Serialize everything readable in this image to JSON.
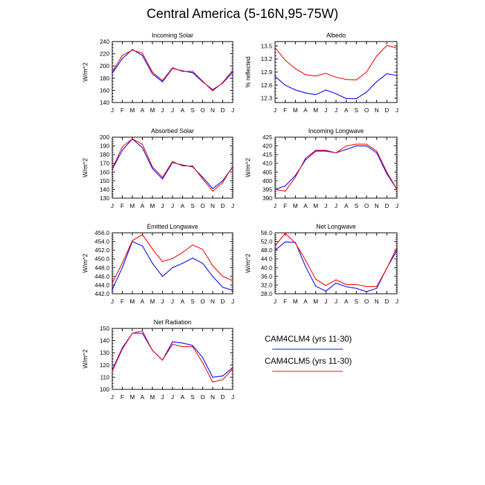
{
  "title": "Central America (5-16N,95-75W)",
  "colors": {
    "clm4": "#0000ff",
    "clm5": "#ff0000"
  },
  "legend": [
    {
      "label": "CAM4CLM4 (yrs 11-30)",
      "color": "#0000ff"
    },
    {
      "label": "CAM4CLM5 (yrs 11-30)",
      "color": "#ff0000"
    }
  ],
  "chart_data": [
    {
      "type": "line",
      "title": "Incoming Solar",
      "ylabel": "W/m^2",
      "xlabel": "",
      "categories": [
        "J",
        "F",
        "M",
        "A",
        "M",
        "J",
        "J",
        "A",
        "S",
        "O",
        "N",
        "D",
        "J"
      ],
      "ylim": [
        140,
        240
      ],
      "yticks": [
        "140",
        "160",
        "180",
        "200",
        "220",
        "240"
      ],
      "series": [
        {
          "name": "CAM4CLM4 (yrs 11-30)",
          "values": [
            188,
            212,
            227,
            217,
            187,
            174,
            196,
            192,
            189,
            174,
            161,
            172,
            190
          ]
        },
        {
          "name": "CAM4CLM5 (yrs 11-30)",
          "values": [
            190,
            217,
            226,
            221,
            190,
            176,
            197,
            191,
            191,
            175,
            159,
            173,
            193
          ]
        }
      ]
    },
    {
      "type": "line",
      "title": "Albedo",
      "ylabel": "% reflected",
      "xlabel": "",
      "categories": [
        "J",
        "F",
        "M",
        "A",
        "M",
        "J",
        "J",
        "A",
        "S",
        "O",
        "N",
        "D",
        "J"
      ],
      "ylim": [
        12.2,
        13.6
      ],
      "yticks": [
        "12.3",
        "12.6",
        "12.9",
        "13.2",
        "13.5"
      ],
      "series": [
        {
          "name": "CAM4CLM4 (yrs 11-30)",
          "values": [
            12.8,
            12.6,
            12.49,
            12.42,
            12.38,
            12.49,
            12.4,
            12.29,
            12.29,
            12.44,
            12.68,
            12.86,
            12.82
          ]
        },
        {
          "name": "CAM4CLM5 (yrs 11-30)",
          "values": [
            13.46,
            13.17,
            12.98,
            12.84,
            12.81,
            12.87,
            12.78,
            12.73,
            12.72,
            12.9,
            13.27,
            13.51,
            13.45
          ]
        }
      ]
    },
    {
      "type": "line",
      "title": "Absorbed Solar",
      "ylabel": "W/m^2",
      "xlabel": "",
      "categories": [
        "J",
        "F",
        "M",
        "A",
        "M",
        "J",
        "J",
        "A",
        "S",
        "O",
        "N",
        "D",
        "J"
      ],
      "ylim": [
        130,
        200
      ],
      "yticks": [
        "130",
        "140",
        "150",
        "160",
        "170",
        "180",
        "190",
        "200"
      ],
      "series": [
        {
          "name": "CAM4CLM4 (yrs 11-30)",
          "values": [
            163,
            185,
            198,
            188,
            164,
            152,
            171,
            168,
            166,
            154,
            141,
            150,
            166
          ]
        },
        {
          "name": "CAM4CLM5 (yrs 11-30)",
          "values": [
            164,
            189,
            198,
            192,
            166,
            154,
            172,
            167,
            167,
            152,
            138,
            148,
            167
          ]
        }
      ]
    },
    {
      "type": "line",
      "title": "Incoming Longwave",
      "ylabel": "W/m^2",
      "xlabel": "",
      "categories": [
        "J",
        "F",
        "M",
        "A",
        "M",
        "J",
        "J",
        "A",
        "S",
        "O",
        "N",
        "D",
        "J"
      ],
      "ylim": [
        390,
        425
      ],
      "yticks": [
        "390",
        "395",
        "400",
        "405",
        "410",
        "415",
        "420",
        "425"
      ],
      "series": [
        {
          "name": "CAM4CLM4 (yrs 11-30)",
          "values": [
            395,
            397,
            403,
            412,
            417,
            417,
            416,
            418,
            420,
            420,
            416,
            404,
            395
          ]
        },
        {
          "name": "CAM4CLM5 (yrs 11-30)",
          "values": [
            395,
            394,
            402,
            413,
            417.5,
            417.5,
            416,
            420,
            421,
            421,
            417,
            405,
            395
          ]
        }
      ]
    },
    {
      "type": "line",
      "title": "Emitted Longwave",
      "ylabel": "W/m^2",
      "xlabel": "",
      "categories": [
        "J",
        "F",
        "M",
        "A",
        "M",
        "J",
        "J",
        "A",
        "S",
        "O",
        "N",
        "D",
        "J"
      ],
      "ylim": [
        442,
        456
      ],
      "yticks": [
        "442.0",
        "444.0",
        "446.0",
        "448.0",
        "450.0",
        "452.0",
        "454.0",
        "456.0"
      ],
      "series": [
        {
          "name": "CAM4CLM4 (yrs 11-30)",
          "values": [
            443,
            448,
            454,
            453,
            449,
            446,
            448,
            449,
            450.2,
            449,
            446,
            443.5,
            442.8
          ]
        },
        {
          "name": "CAM4CLM5 (yrs 11-30)",
          "values": [
            444.5,
            449,
            454.2,
            455.6,
            452.3,
            449.4,
            450.1,
            451.5,
            453.2,
            452.2,
            448.4,
            446,
            445
          ]
        }
      ]
    },
    {
      "type": "line",
      "title": "Net Longwave",
      "ylabel": "W/m^2",
      "xlabel": "",
      "categories": [
        "J",
        "F",
        "M",
        "A",
        "M",
        "J",
        "J",
        "A",
        "S",
        "O",
        "N",
        "D",
        "J"
      ],
      "ylim": [
        28,
        56
      ],
      "yticks": [
        "28.0",
        "32.0",
        "36.0",
        "40.0",
        "44.0",
        "48.0",
        "52.0",
        "56.0"
      ],
      "series": [
        {
          "name": "CAM4CLM4 (yrs 11-30)",
          "values": [
            48,
            51.8,
            51.6,
            40.5,
            31.5,
            29.2,
            32.9,
            31.2,
            30.5,
            29,
            30.5,
            39.8,
            48
          ]
        },
        {
          "name": "CAM4CLM5 (yrs 11-30)",
          "values": [
            50,
            55.8,
            51.3,
            43.4,
            34.7,
            31.8,
            34.4,
            32.2,
            32.3,
            31.3,
            31.3,
            39.7,
            49.3
          ]
        }
      ]
    },
    {
      "type": "line",
      "title": "Net Radiation",
      "ylabel": "W/m^2",
      "xlabel": "",
      "categories": [
        "J",
        "F",
        "M",
        "A",
        "M",
        "J",
        "J",
        "A",
        "S",
        "O",
        "N",
        "D",
        "J"
      ],
      "ylim": [
        100,
        150
      ],
      "yticks": [
        "100",
        "110",
        "120",
        "130",
        "140",
        "150"
      ],
      "series": [
        {
          "name": "CAM4CLM4 (yrs 11-30)",
          "values": [
            116,
            134,
            146,
            146,
            132,
            124,
            139,
            138,
            136,
            126,
            110,
            111,
            118
          ]
        },
        {
          "name": "CAM4CLM5 (yrs 11-30)",
          "values": [
            115,
            133,
            146,
            148,
            132,
            124,
            137,
            135,
            135,
            122,
            106,
            108,
            117
          ]
        }
      ]
    }
  ]
}
